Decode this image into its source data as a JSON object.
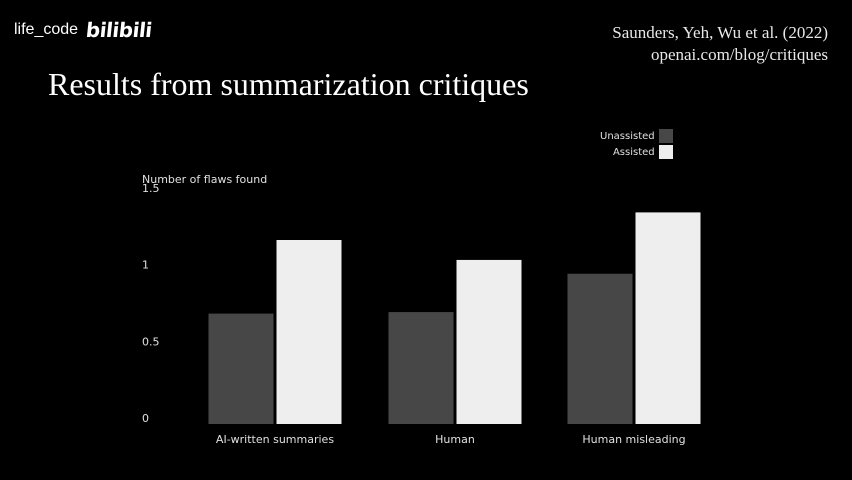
{
  "watermark": {
    "channel": "life_code",
    "brand": "bilibili"
  },
  "citation": {
    "authors": "Saunders, Yeh, Wu et al. (2022)",
    "link": "openai.com/blog/critiques"
  },
  "slide": {
    "title": "Results from summarization critiques"
  },
  "colors": {
    "unassisted": "#474747",
    "assisted": "#eeeeee",
    "background": "#000000"
  },
  "chart_data": {
    "type": "bar",
    "title": "",
    "ylabel": "Number of flaws found",
    "xlabel": "",
    "categories": [
      "AI-written summaries",
      "Human",
      "Human misleading"
    ],
    "series": [
      {
        "name": "Unassisted",
        "values": [
          0.72,
          0.73,
          0.98
        ]
      },
      {
        "name": "Assisted",
        "values": [
          1.2,
          1.07,
          1.38
        ]
      }
    ],
    "ylim": [
      0,
      1.5
    ],
    "yticks": [
      "0",
      "0.5",
      "1",
      "1.5"
    ],
    "grid": false,
    "legend": "top-right"
  }
}
